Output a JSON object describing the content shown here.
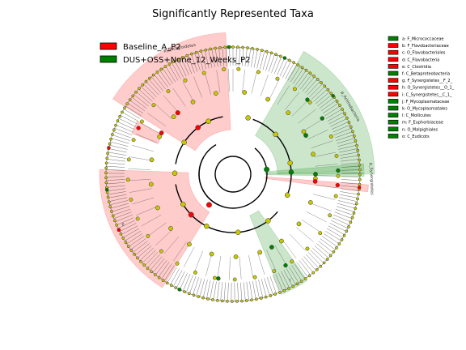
{
  "chart_data": {
    "type": "cladogram",
    "title": "Significantly Represented Taxa",
    "legend_position": "top-left",
    "groups": [
      {
        "name": "Baseline_A_P2",
        "color": "#ff0000"
      },
      {
        "name": "DUS+OSS+None_12_Weeks_P2",
        "color": "#008000"
      }
    ],
    "non_significant_color": "#c8c800",
    "biomarkers": [
      {
        "letter": "a",
        "taxon": "F_Micrococcaceae",
        "group": "DUS+OSS+None_12_Weeks_P2"
      },
      {
        "letter": "b",
        "taxon": "F_Flavobacteriaceae",
        "group": "Baseline_A_P2"
      },
      {
        "letter": "c",
        "taxon": "O_Flavobacteriales",
        "group": "Baseline_A_P2"
      },
      {
        "letter": "d",
        "taxon": "C_Flavobacteria",
        "group": "Baseline_A_P2"
      },
      {
        "letter": "e",
        "taxon": "C_Clostridia",
        "group": "Baseline_A_P2"
      },
      {
        "letter": "f",
        "taxon": "C_Betaproteobacteria",
        "group": "DUS+OSS+None_12_Weeks_P2"
      },
      {
        "letter": "g",
        "taxon": "F_Synergistetes__F_2_",
        "group": "Baseline_A_P2"
      },
      {
        "letter": "h",
        "taxon": "O_Synergistetes__O_1_",
        "group": "Baseline_A_P2"
      },
      {
        "letter": "i",
        "taxon": "C_Synergistetes__C_1_",
        "group": "Baseline_A_P2"
      },
      {
        "letter": "j",
        "taxon": "F_Mycoplasmataceae",
        "group": "DUS+OSS+None_12_Weeks_P2"
      },
      {
        "letter": "k",
        "taxon": "O_Mycoplasmatales",
        "group": "DUS+OSS+None_12_Weeks_P2"
      },
      {
        "letter": "l",
        "taxon": "C_Mollicutes",
        "group": "DUS+OSS+None_12_Weeks_P2"
      },
      {
        "letter": "m",
        "taxon": "F_Euphorbiaceae",
        "group": "DUS+OSS+None_12_Weeks_P2"
      },
      {
        "letter": "n",
        "taxon": "O_Malpighiales",
        "group": "DUS+OSS+None_12_Weeks_P2"
      },
      {
        "letter": "o",
        "taxon": "C_Eudicots",
        "group": "DUS+OSS+None_12_Weeks_P2"
      }
    ],
    "clade_labels": [
      {
        "text": "p_Bacteroidetes",
        "group": "Baseline_A_P2"
      },
      {
        "text": "p_Actinobacteria",
        "group": "DUS+OSS+None_12_Weeks_P2"
      },
      {
        "text": "p_Synergistetes",
        "group": "Baseline_A_P2"
      },
      {
        "text": "e",
        "group": "Baseline_A_P2"
      },
      {
        "text": "l",
        "group": "DUS+OSS+None_12_Weeks_P2"
      }
    ]
  }
}
